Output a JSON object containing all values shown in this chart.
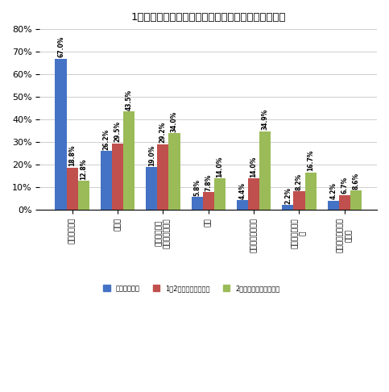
{
  "title": "1歳までの皮膚湿纁の状況別・現在のアレルギー症状",
  "categories": [
    "ほとんどなし",
    "花粉症",
    "アレルギー性\n鼻炎・副鼻腔炎",
    "喘息",
    "アトピー性皮膚炎",
    "食物アレルギー\nー",
    "その他アレルギー\nー疾患"
  ],
  "series": [
    {
      "name": "ほとんど無し",
      "color": "#4472C4",
      "values": [
        67.0,
        26.2,
        19.0,
        5.8,
        4.4,
        2.2,
        4.2
      ]
    },
    {
      "name": "1～2か月継続経験あり",
      "color": "#C0504D",
      "values": [
        18.8,
        29.5,
        29.2,
        7.8,
        14.0,
        8.2,
        6.7
      ]
    },
    {
      "name": "2か月以上継続経験あり",
      "color": "#9BBB59",
      "values": [
        12.8,
        43.5,
        34.0,
        14.0,
        34.9,
        16.7,
        8.6
      ]
    }
  ],
  "bar_labels": [
    [
      "67.0%",
      "18.8%",
      "12.8%"
    ],
    [
      "26.2%",
      "29.5%",
      "43.5%"
    ],
    [
      "19.0%",
      "29.2%",
      "34.0%"
    ],
    [
      "5.8%",
      "7.8%",
      "14.0%"
    ],
    [
      "4.4%",
      "14.0%",
      "34.9%"
    ],
    [
      "2.2%",
      "8.2%",
      "16.7%"
    ],
    [
      "4.2%",
      "6.7%",
      "8.6%"
    ]
  ],
  "ylim": [
    0,
    80
  ],
  "yticks": [
    0,
    10,
    20,
    30,
    40,
    50,
    60,
    70,
    80
  ],
  "ytick_labels": [
    "0%",
    "10%",
    "20%",
    "30%",
    "40%",
    "50%",
    "60%",
    "70%",
    "80%"
  ],
  "background_color": "#FFFFFF",
  "grid_color": "#BBBBBB"
}
